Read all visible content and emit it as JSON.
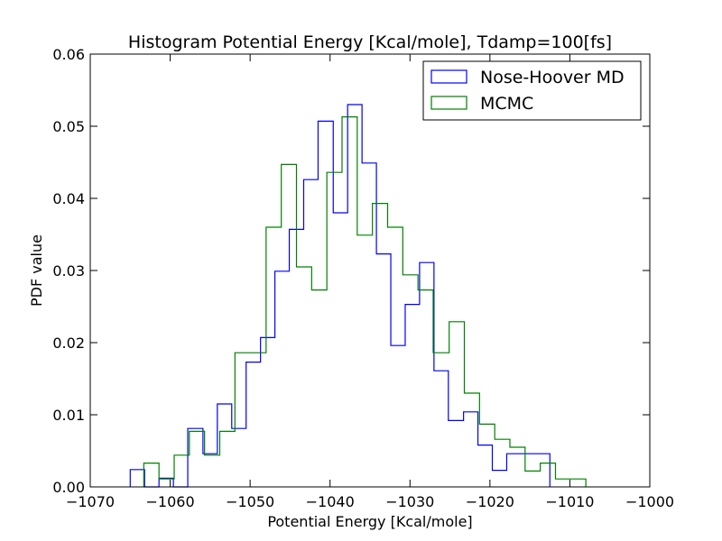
{
  "chart_data": {
    "type": "histogram",
    "title": "Histogram Potential Energy [Kcal/mole], Tdamp=100[fs]",
    "xlabel": "Potential Energy [Kcal/mole]",
    "ylabel": "PDF value",
    "xlim": [
      -1070,
      -1000
    ],
    "ylim": [
      0,
      0.06
    ],
    "xticks": [
      -1070,
      -1060,
      -1050,
      -1040,
      -1030,
      -1020,
      -1010,
      -1000
    ],
    "xtick_labels": [
      "−1070",
      "−1060",
      "−1050",
      "−1040",
      "−1030",
      "−1020",
      "−1010",
      "−1000"
    ],
    "yticks": [
      0.0,
      0.01,
      0.02,
      0.03,
      0.04,
      0.05,
      0.06
    ],
    "ytick_labels": [
      "0.00",
      "0.01",
      "0.02",
      "0.03",
      "0.04",
      "0.05",
      "0.06"
    ],
    "grid": false,
    "legend_position": "top-right",
    "series": [
      {
        "name": "Nose-Hoover MD",
        "color": "#0000ff",
        "histtype": "step",
        "edges": [
          -1065.0,
          -1063.2,
          -1061.4,
          -1059.6,
          -1057.8,
          -1055.9,
          -1054.1,
          -1052.3,
          -1050.5,
          -1048.7,
          -1046.9,
          -1045.1,
          -1043.3,
          -1041.5,
          -1039.6,
          -1037.8,
          -1036.0,
          -1034.2,
          -1032.4,
          -1030.6,
          -1028.8,
          -1027.0,
          -1025.2,
          -1023.3,
          -1021.5,
          -1019.7,
          -1017.9,
          -1016.1,
          -1014.3,
          -1012.5
        ],
        "values": [
          0.0024,
          0.0,
          0.0012,
          0.0,
          0.0081,
          0.0046,
          0.0115,
          0.0081,
          0.0173,
          0.0207,
          0.0299,
          0.0357,
          0.0426,
          0.0507,
          0.038,
          0.053,
          0.0449,
          0.0323,
          0.0196,
          0.0253,
          0.0311,
          0.0161,
          0.0092,
          0.0104,
          0.0058,
          0.0023,
          0.0046,
          0.0046,
          0.0046
        ]
      },
      {
        "name": "MCMC",
        "color": "#008000",
        "histtype": "step",
        "edges": [
          -1063.3,
          -1061.4,
          -1059.5,
          -1057.6,
          -1055.7,
          -1053.8,
          -1051.9,
          -1050.0,
          -1048.0,
          -1046.1,
          -1044.2,
          -1042.3,
          -1040.4,
          -1038.5,
          -1036.6,
          -1034.7,
          -1032.8,
          -1030.9,
          -1029.0,
          -1027.1,
          -1025.1,
          -1023.2,
          -1021.3,
          -1019.4,
          -1017.5,
          -1015.6,
          -1013.7,
          -1011.8,
          -1009.9,
          -1008.0
        ],
        "values": [
          0.0033,
          0.0011,
          0.0044,
          0.0077,
          0.0044,
          0.0077,
          0.0186,
          0.0186,
          0.036,
          0.0447,
          0.0305,
          0.0273,
          0.0436,
          0.0513,
          0.0349,
          0.0393,
          0.036,
          0.0294,
          0.0273,
          0.0186,
          0.0229,
          0.013,
          0.0087,
          0.0066,
          0.0055,
          0.0022,
          0.0033,
          0.0011,
          0.0011
        ]
      }
    ]
  }
}
